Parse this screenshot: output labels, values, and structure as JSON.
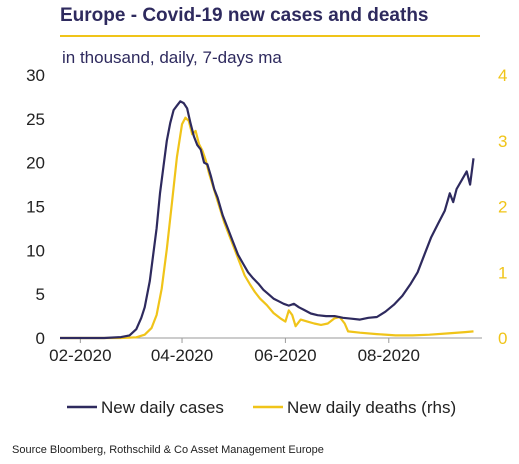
{
  "header": {
    "title": "Europe - Covid-19 new cases and deaths",
    "subtitle": "in thousand, daily, 7-days ma"
  },
  "footer": {
    "source": "Source Bloomberg, Rothschild  & Co Asset Management Europe"
  },
  "colors": {
    "cases": "#2e2a5e",
    "deaths": "#f0c419",
    "title": "#2e2a5e",
    "left_axis_text": "#222222",
    "right_axis_text": "#f0c419"
  },
  "chart_data": {
    "type": "line",
    "title": "Europe - Covid-19 new cases and deaths",
    "subtitle": "in thousand, daily, 7-days ma",
    "x_ticks": [
      "02-2020",
      "04-2020",
      "06-2020",
      "08-2020"
    ],
    "x_tick_dates": [
      "2020-02-01",
      "2020-04-01",
      "2020-06-01",
      "2020-08-01"
    ],
    "xlim": [
      "2020-01-20",
      "2020-09-25"
    ],
    "y_left": {
      "ylim": [
        0,
        30
      ],
      "ticks": [
        "0",
        "5",
        "10",
        "15",
        "20",
        "25",
        "30"
      ]
    },
    "y_right": {
      "ylim": [
        0,
        4
      ],
      "ticks": [
        "0",
        "1",
        "2",
        "3",
        "4"
      ]
    },
    "grid": false,
    "legend_position": "bottom",
    "series": [
      {
        "name": "New daily cases",
        "axis": "left",
        "points": [
          [
            "2020-01-20",
            0
          ],
          [
            "2020-02-15",
            0
          ],
          [
            "2020-02-25",
            0.1
          ],
          [
            "2020-03-01",
            0.3
          ],
          [
            "2020-03-05",
            1.0
          ],
          [
            "2020-03-08",
            2.3
          ],
          [
            "2020-03-10",
            3.5
          ],
          [
            "2020-03-13",
            6.5
          ],
          [
            "2020-03-15",
            9.5
          ],
          [
            "2020-03-17",
            12.5
          ],
          [
            "2020-03-19",
            16.5
          ],
          [
            "2020-03-21",
            19.5
          ],
          [
            "2020-03-23",
            22.5
          ],
          [
            "2020-03-25",
            24.5
          ],
          [
            "2020-03-27",
            26.0
          ],
          [
            "2020-03-29",
            26.5
          ],
          [
            "2020-03-31",
            27.0
          ],
          [
            "2020-04-02",
            26.8
          ],
          [
            "2020-04-04",
            26.2
          ],
          [
            "2020-04-06",
            24.5
          ],
          [
            "2020-04-08",
            23.0
          ],
          [
            "2020-04-10",
            22.0
          ],
          [
            "2020-04-12",
            21.5
          ],
          [
            "2020-04-14",
            20.0
          ],
          [
            "2020-04-16",
            19.8
          ],
          [
            "2020-04-18",
            18.5
          ],
          [
            "2020-04-20",
            17.0
          ],
          [
            "2020-04-22",
            16.0
          ],
          [
            "2020-04-25",
            14.0
          ],
          [
            "2020-04-28",
            12.5
          ],
          [
            "2020-05-01",
            11.0
          ],
          [
            "2020-05-04",
            9.5
          ],
          [
            "2020-05-07",
            8.5
          ],
          [
            "2020-05-10",
            7.5
          ],
          [
            "2020-05-13",
            6.8
          ],
          [
            "2020-05-16",
            6.2
          ],
          [
            "2020-05-19",
            5.5
          ],
          [
            "2020-05-22",
            5.0
          ],
          [
            "2020-05-25",
            4.5
          ],
          [
            "2020-05-28",
            4.2
          ],
          [
            "2020-05-31",
            3.9
          ],
          [
            "2020-06-03",
            3.7
          ],
          [
            "2020-06-06",
            3.9
          ],
          [
            "2020-06-09",
            3.5
          ],
          [
            "2020-06-12",
            3.2
          ],
          [
            "2020-06-16",
            2.8
          ],
          [
            "2020-06-20",
            2.6
          ],
          [
            "2020-06-25",
            2.5
          ],
          [
            "2020-06-30",
            2.5
          ],
          [
            "2020-07-05",
            2.3
          ],
          [
            "2020-07-10",
            2.2
          ],
          [
            "2020-07-15",
            2.1
          ],
          [
            "2020-07-20",
            2.3
          ],
          [
            "2020-07-25",
            2.4
          ],
          [
            "2020-07-30",
            3.0
          ],
          [
            "2020-08-04",
            3.8
          ],
          [
            "2020-08-09",
            4.8
          ],
          [
            "2020-08-14",
            6.2
          ],
          [
            "2020-08-18",
            7.5
          ],
          [
            "2020-08-22",
            9.5
          ],
          [
            "2020-08-26",
            11.5
          ],
          [
            "2020-08-30",
            13.0
          ],
          [
            "2020-09-03",
            14.5
          ],
          [
            "2020-09-06",
            16.5
          ],
          [
            "2020-09-08",
            15.5
          ],
          [
            "2020-09-10",
            17.0
          ],
          [
            "2020-09-13",
            18.0
          ],
          [
            "2020-09-16",
            19.0
          ],
          [
            "2020-09-18",
            17.5
          ],
          [
            "2020-09-20",
            20.5
          ]
        ]
      },
      {
        "name": "New daily deaths (rhs)",
        "axis": "right",
        "points": [
          [
            "2020-01-20",
            0
          ],
          [
            "2020-02-25",
            0
          ],
          [
            "2020-03-05",
            0.01
          ],
          [
            "2020-03-10",
            0.05
          ],
          [
            "2020-03-14",
            0.15
          ],
          [
            "2020-03-17",
            0.35
          ],
          [
            "2020-03-20",
            0.75
          ],
          [
            "2020-03-23",
            1.35
          ],
          [
            "2020-03-26",
            2.05
          ],
          [
            "2020-03-29",
            2.75
          ],
          [
            "2020-04-01",
            3.25
          ],
          [
            "2020-04-03",
            3.35
          ],
          [
            "2020-04-05",
            3.3
          ],
          [
            "2020-04-07",
            3.1
          ],
          [
            "2020-04-09",
            3.15
          ],
          [
            "2020-04-11",
            2.95
          ],
          [
            "2020-04-13",
            2.85
          ],
          [
            "2020-04-15",
            2.7
          ],
          [
            "2020-04-17",
            2.5
          ],
          [
            "2020-04-20",
            2.25
          ],
          [
            "2020-04-23",
            2.0
          ],
          [
            "2020-04-26",
            1.75
          ],
          [
            "2020-04-29",
            1.55
          ],
          [
            "2020-05-02",
            1.35
          ],
          [
            "2020-05-05",
            1.15
          ],
          [
            "2020-05-08",
            0.95
          ],
          [
            "2020-05-11",
            0.82
          ],
          [
            "2020-05-14",
            0.7
          ],
          [
            "2020-05-17",
            0.6
          ],
          [
            "2020-05-21",
            0.5
          ],
          [
            "2020-05-25",
            0.38
          ],
          [
            "2020-05-29",
            0.3
          ],
          [
            "2020-06-01",
            0.25
          ],
          [
            "2020-06-03",
            0.42
          ],
          [
            "2020-06-05",
            0.35
          ],
          [
            "2020-06-07",
            0.18
          ],
          [
            "2020-06-10",
            0.28
          ],
          [
            "2020-06-14",
            0.25
          ],
          [
            "2020-06-18",
            0.22
          ],
          [
            "2020-06-22",
            0.2
          ],
          [
            "2020-06-26",
            0.22
          ],
          [
            "2020-06-30",
            0.3
          ],
          [
            "2020-07-03",
            0.32
          ],
          [
            "2020-07-06",
            0.22
          ],
          [
            "2020-07-08",
            0.1
          ],
          [
            "2020-07-15",
            0.08
          ],
          [
            "2020-07-25",
            0.06
          ],
          [
            "2020-08-05",
            0.04
          ],
          [
            "2020-08-15",
            0.04
          ],
          [
            "2020-08-25",
            0.05
          ],
          [
            "2020-09-05",
            0.07
          ],
          [
            "2020-09-15",
            0.09
          ],
          [
            "2020-09-20",
            0.1
          ]
        ]
      }
    ]
  }
}
